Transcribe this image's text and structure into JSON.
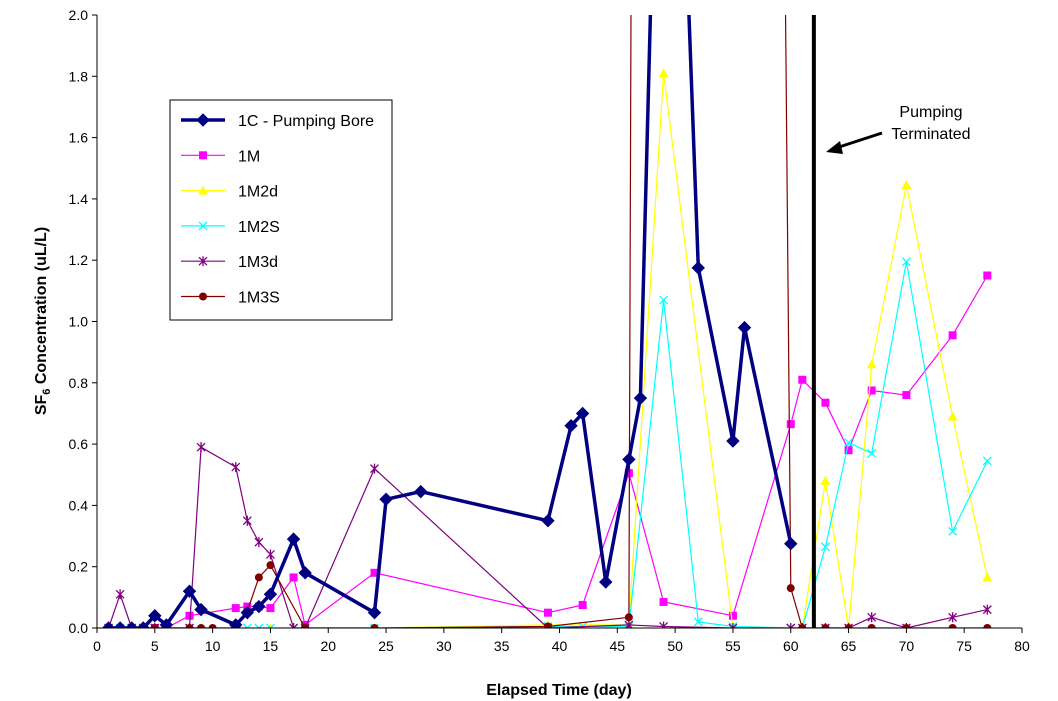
{
  "chart_data": {
    "type": "line",
    "title": "",
    "xlabel": "Elapsed Time (day)",
    "ylabel_prefix": "SF",
    "ylabel_sub": "6",
    "ylabel_suffix": " Concentration (uL/L)",
    "xlim": [
      0,
      80
    ],
    "ylim": [
      0,
      2.0
    ],
    "xticks": [
      0,
      5,
      10,
      15,
      20,
      25,
      30,
      35,
      40,
      45,
      50,
      55,
      60,
      65,
      70,
      75,
      80
    ],
    "yticks": [
      "0.0",
      "0.2",
      "0.4",
      "0.6",
      "0.8",
      "1.0",
      "1.2",
      "1.4",
      "1.6",
      "1.8",
      "2.0"
    ],
    "grid": false,
    "legend_position": "upper-left",
    "series": [
      {
        "name": "1C - Pumping Bore",
        "color": "#000080",
        "marker": "diamond",
        "x": [
          1,
          2,
          3,
          4,
          5,
          6,
          8,
          9,
          12,
          13,
          14,
          15,
          17,
          18,
          24,
          25,
          28,
          39,
          41,
          42,
          44,
          46,
          47,
          48,
          51,
          52,
          55,
          56,
          60
        ],
        "y": [
          0.0,
          0.0,
          0.0,
          0.0,
          0.04,
          0.01,
          0.12,
          0.06,
          0.01,
          0.05,
          0.07,
          0.11,
          0.29,
          0.18,
          0.05,
          0.42,
          0.445,
          0.35,
          0.66,
          0.7,
          0.15,
          0.55,
          0.75,
          2.2,
          2.2,
          1.175,
          0.61,
          0.98,
          0.275
        ]
      },
      {
        "name": "1M",
        "color": "#ff00ff",
        "marker": "square",
        "x": [
          1,
          2,
          3,
          4,
          5,
          6,
          8,
          12,
          13,
          14,
          15,
          17,
          18,
          24,
          39,
          42,
          46,
          49,
          55,
          60,
          61,
          63,
          65,
          67,
          70,
          74,
          77
        ],
        "y": [
          0.0,
          0.0,
          0.0,
          0.0,
          0.0,
          0.0,
          0.04,
          0.065,
          0.07,
          0.07,
          0.065,
          0.165,
          0.01,
          0.18,
          0.05,
          0.075,
          0.505,
          0.085,
          0.04,
          0.665,
          0.81,
          0.735,
          0.58,
          0.775,
          0.76,
          0.955,
          1.15
        ]
      },
      {
        "name": "1M2d",
        "color": "#ffff00",
        "marker": "triangle",
        "x": [
          1,
          2,
          3,
          4,
          5,
          6,
          8,
          12,
          15,
          17,
          18,
          24,
          39,
          46,
          49,
          55,
          60,
          61,
          63,
          65,
          67,
          70,
          74,
          77
        ],
        "y": [
          0.0,
          0.0,
          0.0,
          0.0,
          0.0,
          0.0,
          0.0,
          0.0,
          0.0,
          0.0,
          0.0,
          0.0,
          0.01,
          0.01,
          1.81,
          0.0,
          0.0,
          0.0,
          0.48,
          0.0,
          0.86,
          1.445,
          0.69,
          0.165
        ]
      },
      {
        "name": "1M2S",
        "color": "#00ffff",
        "marker": "x",
        "x": [
          1,
          2,
          3,
          4,
          5,
          6,
          8,
          12,
          13,
          14,
          15,
          17,
          18,
          24,
          39,
          42,
          46,
          49,
          52,
          55,
          60,
          61,
          63,
          65,
          67,
          70,
          74,
          77
        ],
        "y": [
          0.0,
          0.0,
          0.0,
          0.0,
          0.0,
          0.0,
          0.0,
          0.0,
          0.0,
          0.0,
          0.0,
          0.0,
          0.0,
          0.0,
          0.005,
          0.005,
          0.005,
          1.07,
          0.02,
          0.005,
          0.0,
          0.0,
          0.265,
          0.605,
          0.57,
          1.195,
          0.315,
          0.545
        ]
      },
      {
        "name": "1M3d",
        "color": "#800080",
        "marker": "star",
        "x": [
          1,
          2,
          3,
          4,
          5,
          6,
          8,
          9,
          12,
          13,
          14,
          15,
          17,
          18,
          24,
          39,
          46,
          49,
          55,
          60,
          61,
          63,
          65,
          67,
          70,
          74,
          77
        ],
        "y": [
          0.0,
          0.11,
          0.0,
          0.0,
          0.0,
          0.0,
          0.0,
          0.59,
          0.525,
          0.35,
          0.28,
          0.24,
          0.0,
          0.0,
          0.52,
          0.0,
          0.01,
          0.005,
          0.0,
          0.0,
          0.0,
          0.0,
          0.0,
          0.035,
          0.0,
          0.035,
          0.06
        ]
      },
      {
        "name": "1M3S",
        "color": "#800000",
        "marker": "circle",
        "x": [
          1,
          2,
          3,
          4,
          5,
          6,
          8,
          9,
          10,
          12,
          13,
          14,
          15,
          18,
          24,
          39,
          46,
          46.2,
          59.5,
          60,
          61,
          63,
          65,
          67,
          70,
          74,
          77
        ],
        "y": [
          0.0,
          0.0,
          0.0,
          0.0,
          0.0,
          0.0,
          0.0,
          0.0,
          0.0,
          0.0,
          0.055,
          0.165,
          0.205,
          0.0,
          0.0,
          0.005,
          0.035,
          2.2,
          2.2,
          0.13,
          0.0,
          0.0,
          0.0,
          0.0,
          0.0,
          0.0,
          0.0
        ]
      }
    ],
    "annotations": [
      {
        "text_lines": [
          "Pumping",
          "Terminated"
        ],
        "vertical_line_x": 62
      }
    ]
  }
}
